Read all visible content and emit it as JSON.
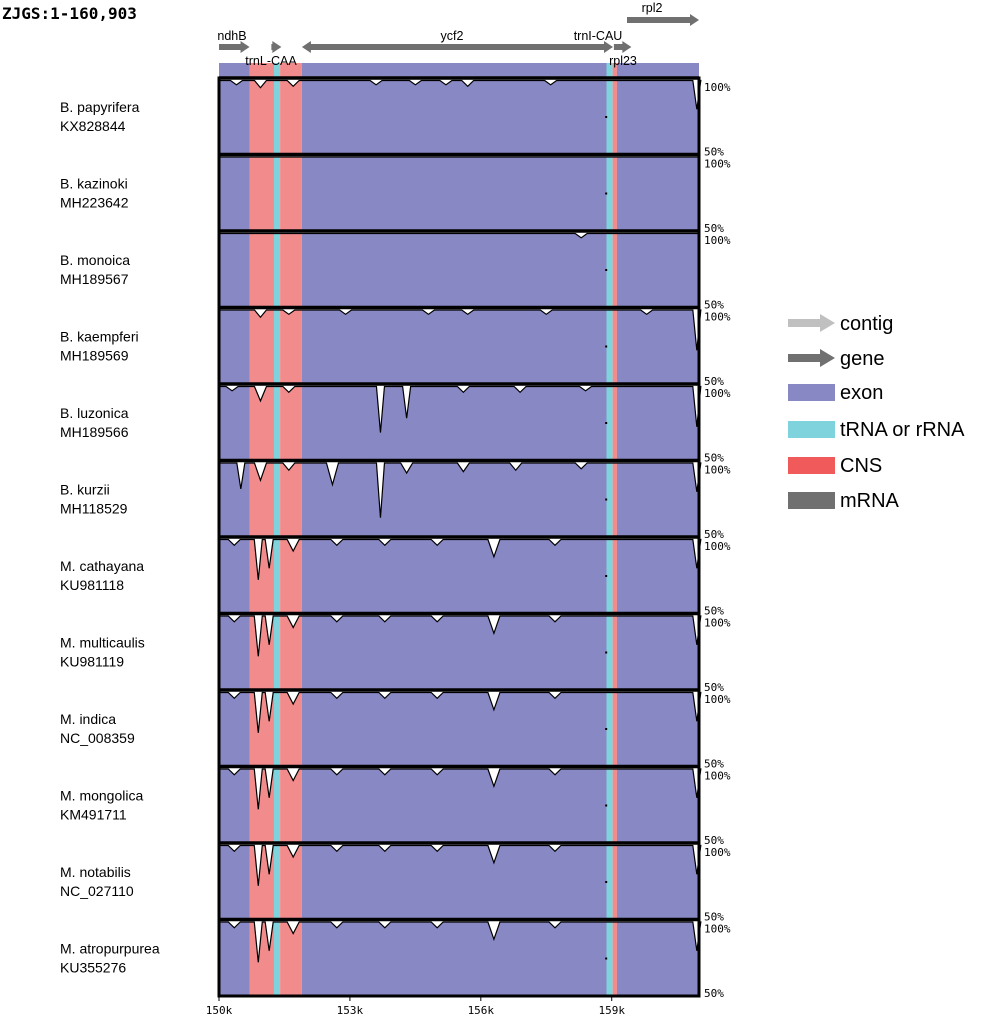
{
  "chart_data": {
    "type": "area",
    "title": "ZJGS:1-160,903",
    "xlabel": "",
    "ylabel": "",
    "xlim": [
      150000,
      161000
    ],
    "x_ticks": [
      {
        "value": 150000,
        "label": "150k"
      },
      {
        "value": 153000,
        "label": "153k"
      },
      {
        "value": 156000,
        "label": "156k"
      },
      {
        "value": 159000,
        "label": "159k"
      }
    ],
    "y_ticks": [
      "100%",
      "50%"
    ],
    "colors": {
      "exon": "#8888c4",
      "trna": "#7fd3dc",
      "cns": "#f28b8b",
      "contig": "#c0c0c0",
      "gene": "#707070",
      "mrna": "#707070"
    },
    "genes": [
      {
        "name": "ndhB",
        "start": 150000,
        "end": 150700,
        "strand": "+",
        "label_row": 0
      },
      {
        "name": "trnL-CAA",
        "start": 151200,
        "end": 151400,
        "strand": "+",
        "label_row": 1
      },
      {
        "name": "ycf2",
        "start": 151900,
        "end": 158800,
        "strand": "-",
        "label_row": 0
      },
      {
        "name": "trnI-CAU",
        "start": 158800,
        "end": 158990,
        "strand": "+",
        "label_row": 0
      },
      {
        "name": "rpl23",
        "start": 159050,
        "end": 159450,
        "strand": "+",
        "label_row": 1
      },
      {
        "name": "rpl2",
        "start": 159350,
        "end": 161000,
        "strand": "+",
        "label_row": 2
      }
    ],
    "regions": [
      {
        "type": "exon",
        "start": 150000,
        "end": 150700
      },
      {
        "type": "cns",
        "start": 150700,
        "end": 151260
      },
      {
        "type": "trna",
        "start": 151260,
        "end": 151400
      },
      {
        "type": "cns",
        "start": 151400,
        "end": 151900
      },
      {
        "type": "exon",
        "start": 151900,
        "end": 158880
      },
      {
        "type": "trna",
        "start": 158880,
        "end": 159020
      },
      {
        "type": "cns",
        "start": 159020,
        "end": 159120
      },
      {
        "type": "exon",
        "start": 159120,
        "end": 161000
      }
    ],
    "series": [
      {
        "name": "B. papyrifera",
        "accession": "KX828844",
        "dips": [
          [
            150400,
            97
          ],
          [
            150950,
            95
          ],
          [
            151700,
            96
          ],
          [
            153600,
            97
          ],
          [
            154500,
            97
          ],
          [
            155200,
            97
          ],
          [
            155700,
            96
          ],
          [
            157600,
            97
          ],
          [
            160950,
            80
          ]
        ]
      },
      {
        "name": "B. kazinoki",
        "accession": "MH223642",
        "dips": []
      },
      {
        "name": "B. monoica",
        "accession": "MH189567",
        "dips": [
          [
            158300,
            97
          ]
        ]
      },
      {
        "name": "B. kaempferi",
        "accession": "MH189569",
        "dips": [
          [
            150950,
            95
          ],
          [
            151600,
            97
          ],
          [
            152900,
            97
          ],
          [
            154800,
            97
          ],
          [
            155700,
            97
          ],
          [
            157500,
            97
          ],
          [
            159800,
            97
          ],
          [
            160950,
            72
          ]
        ]
      },
      {
        "name": "B. luzonica",
        "accession": "MH189566",
        "dips": [
          [
            150300,
            97
          ],
          [
            150950,
            90
          ],
          [
            151600,
            96
          ],
          [
            153700,
            68
          ],
          [
            154300,
            78
          ],
          [
            155600,
            96
          ],
          [
            156900,
            96
          ],
          [
            158400,
            97
          ],
          [
            160950,
            72
          ]
        ]
      },
      {
        "name": "B. kurzii",
        "accession": "MH118529",
        "dips": [
          [
            150500,
            82
          ],
          [
            150950,
            88
          ],
          [
            151600,
            95
          ],
          [
            152600,
            85
          ],
          [
            153700,
            62
          ],
          [
            154300,
            93
          ],
          [
            155600,
            94
          ],
          [
            156800,
            95
          ],
          [
            158300,
            96
          ],
          [
            160950,
            80
          ]
        ]
      },
      {
        "name": "M. cathayana",
        "accession": "KU981118",
        "dips": [
          [
            150350,
            96
          ],
          [
            150900,
            72
          ],
          [
            151150,
            80
          ],
          [
            151700,
            92
          ],
          [
            152700,
            96
          ],
          [
            153800,
            96
          ],
          [
            155000,
            96
          ],
          [
            156300,
            88
          ],
          [
            157700,
            96
          ],
          [
            160950,
            80
          ]
        ]
      },
      {
        "name": "M. multicaulis",
        "accession": "KU981119",
        "dips": [
          [
            150350,
            96
          ],
          [
            150900,
            72
          ],
          [
            151150,
            80
          ],
          [
            151700,
            92
          ],
          [
            152700,
            96
          ],
          [
            153800,
            96
          ],
          [
            155000,
            96
          ],
          [
            156300,
            88
          ],
          [
            157700,
            96
          ],
          [
            160950,
            80
          ]
        ]
      },
      {
        "name": "M. indica",
        "accession": "NC_008359",
        "dips": [
          [
            150350,
            96
          ],
          [
            150900,
            72
          ],
          [
            151150,
            80
          ],
          [
            151700,
            92
          ],
          [
            152700,
            96
          ],
          [
            153800,
            96
          ],
          [
            155000,
            96
          ],
          [
            156300,
            88
          ],
          [
            157700,
            96
          ],
          [
            160950,
            80
          ]
        ]
      },
      {
        "name": "M. mongolica",
        "accession": "KM491711",
        "dips": [
          [
            150350,
            96
          ],
          [
            150900,
            72
          ],
          [
            151150,
            80
          ],
          [
            151700,
            92
          ],
          [
            152700,
            96
          ],
          [
            153800,
            96
          ],
          [
            155000,
            96
          ],
          [
            156300,
            88
          ],
          [
            157700,
            96
          ],
          [
            160950,
            80
          ]
        ]
      },
      {
        "name": "M. notabilis",
        "accession": "NC_027110",
        "dips": [
          [
            150350,
            96
          ],
          [
            150900,
            72
          ],
          [
            151150,
            80
          ],
          [
            151700,
            92
          ],
          [
            152700,
            96
          ],
          [
            153800,
            96
          ],
          [
            155000,
            96
          ],
          [
            156300,
            88
          ],
          [
            157700,
            96
          ],
          [
            160950,
            80
          ]
        ]
      },
      {
        "name": "M. atropurpurea",
        "accession": "KU355276",
        "dips": [
          [
            150350,
            96
          ],
          [
            150900,
            72
          ],
          [
            151150,
            80
          ],
          [
            151700,
            92
          ],
          [
            152700,
            96
          ],
          [
            153800,
            96
          ],
          [
            155000,
            96
          ],
          [
            156300,
            88
          ],
          [
            157700,
            96
          ],
          [
            160950,
            80
          ]
        ]
      }
    ],
    "legend": {
      "placement": "right",
      "items": [
        {
          "label": "contig",
          "kind": "arrow",
          "color": "#c0c0c0"
        },
        {
          "label": "gene",
          "kind": "arrow",
          "color": "#707070"
        },
        {
          "label": "exon",
          "kind": "box",
          "color": "#8888c4"
        },
        {
          "label": "tRNA or rRNA",
          "kind": "box",
          "color": "#7fd3dc"
        },
        {
          "label": "CNS",
          "kind": "box",
          "color": "#f05a5a"
        },
        {
          "label": "mRNA",
          "kind": "box",
          "color": "#707070"
        }
      ]
    }
  }
}
